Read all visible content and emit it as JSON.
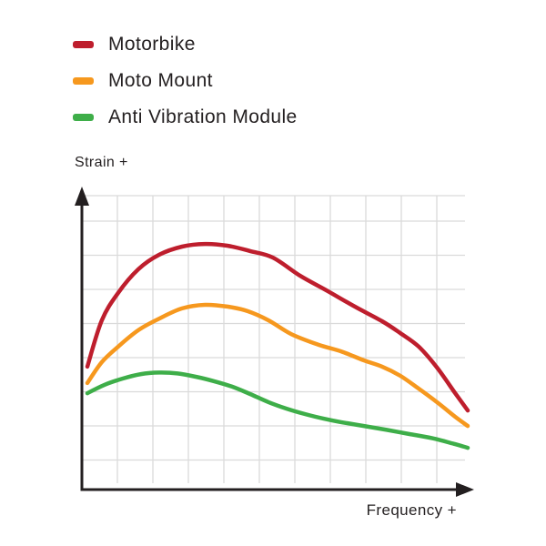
{
  "legend": {
    "items": [
      {
        "id": "motorbike",
        "label": "Motorbike",
        "color": "#BE1E2D"
      },
      {
        "id": "moto-mount",
        "label": "Moto Mount",
        "color": "#F6981E"
      },
      {
        "id": "anti-vibration-module",
        "label": "Anti Vibration Module",
        "color": "#3EAE49"
      }
    ]
  },
  "chart_data": {
    "type": "line",
    "title": "",
    "xlabel": "Frequency +",
    "ylabel": "Strain +",
    "x_range": [
      0,
      100
    ],
    "y_range": [
      0,
      100
    ],
    "grid": true,
    "legend_position": "top-left-outside",
    "series": [
      {
        "name": "Motorbike",
        "color": "#BE1E2D",
        "points": [
          [
            0,
            41.2
          ],
          [
            3.8,
            56.7
          ],
          [
            8.1,
            65.9
          ],
          [
            13.4,
            73.8
          ],
          [
            18.9,
            78.7
          ],
          [
            24.9,
            81.4
          ],
          [
            30.9,
            82.3
          ],
          [
            36.8,
            81.7
          ],
          [
            42.8,
            79.9
          ],
          [
            48.8,
            77.7
          ],
          [
            56,
            71.6
          ],
          [
            63.2,
            66.5
          ],
          [
            70.3,
            61.3
          ],
          [
            77.5,
            56.4
          ],
          [
            82.3,
            52.4
          ],
          [
            87.1,
            47.9
          ],
          [
            91.9,
            40.9
          ],
          [
            96.7,
            32.3
          ],
          [
            100,
            26.5
          ]
        ]
      },
      {
        "name": "Moto Mount",
        "color": "#F6981E",
        "points": [
          [
            0,
            35.7
          ],
          [
            3.8,
            42.7
          ],
          [
            8.1,
            47.9
          ],
          [
            13.4,
            53.4
          ],
          [
            18.9,
            57.3
          ],
          [
            24.9,
            60.7
          ],
          [
            30.9,
            61.9
          ],
          [
            36.8,
            61.3
          ],
          [
            42.1,
            59.8
          ],
          [
            47.6,
            56.7
          ],
          [
            53.6,
            52.1
          ],
          [
            60.8,
            48.5
          ],
          [
            66.7,
            46.3
          ],
          [
            72.7,
            43.3
          ],
          [
            77.5,
            41.2
          ],
          [
            82.3,
            38.1
          ],
          [
            87.1,
            33.8
          ],
          [
            91.9,
            29.3
          ],
          [
            96.7,
            24.4
          ],
          [
            100,
            21.3
          ]
        ]
      },
      {
        "name": "Anti Vibration Module",
        "color": "#3EAE49",
        "points": [
          [
            0,
            32.3
          ],
          [
            4.5,
            35.1
          ],
          [
            9.3,
            37.2
          ],
          [
            14.1,
            38.7
          ],
          [
            18.9,
            39.2
          ],
          [
            23.7,
            38.9
          ],
          [
            28.5,
            37.8
          ],
          [
            33.3,
            36.3
          ],
          [
            38,
            34.5
          ],
          [
            42.8,
            32
          ],
          [
            47.6,
            29.3
          ],
          [
            52.4,
            27.1
          ],
          [
            57.2,
            25.3
          ],
          [
            62,
            23.8
          ],
          [
            66.7,
            22.6
          ],
          [
            72.7,
            21.3
          ],
          [
            78.7,
            20
          ],
          [
            84.7,
            18.6
          ],
          [
            90.7,
            17.2
          ],
          [
            96.7,
            15.2
          ],
          [
            100,
            14
          ]
        ]
      }
    ]
  },
  "colors": {
    "axis": "#231F20",
    "grid": "#DADADA",
    "text": "#231F20",
    "background": "#FFFFFF"
  }
}
